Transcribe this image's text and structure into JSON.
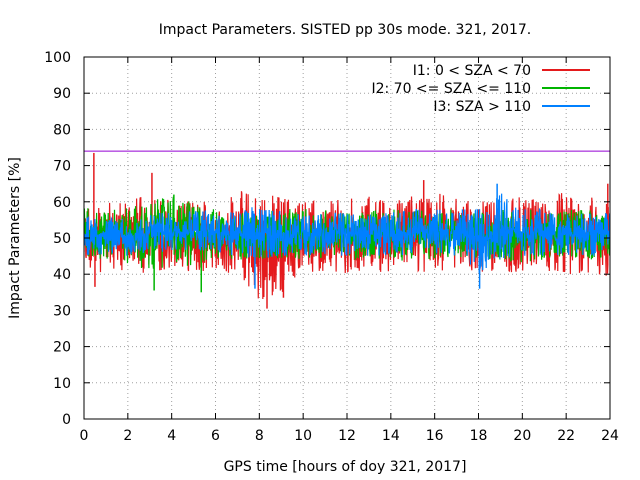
{
  "chart_data": {
    "type": "line",
    "title": "Impact Parameters. SISTED pp 30s mode. 321, 2017.",
    "xlabel": "GPS time [hours of doy 321, 2017]",
    "ylabel": "Impact Parameters [%]",
    "xlim": [
      0,
      24
    ],
    "ylim": [
      0,
      100
    ],
    "x_ticks": [
      0,
      2,
      4,
      6,
      8,
      10,
      12,
      14,
      16,
      18,
      20,
      22,
      24
    ],
    "y_ticks": [
      0,
      10,
      20,
      30,
      40,
      50,
      60,
      70,
      80,
      90,
      100
    ],
    "grid": true,
    "legend_position": "top-right",
    "reference_line": {
      "y": 74,
      "color": "#9400d3"
    },
    "series": [
      {
        "name": "I1: 0 < SZA < 70",
        "color": "#e41a1c",
        "x": [
          0,
          1,
          2,
          3,
          4,
          5,
          6,
          7,
          8,
          9,
          10,
          11,
          12,
          13,
          14,
          15,
          16,
          17,
          18,
          19,
          20,
          21,
          22,
          23,
          24
        ],
        "low": [
          42,
          40,
          41,
          40,
          41,
          40,
          40,
          40,
          31,
          34,
          40,
          41,
          40,
          40,
          40,
          41,
          40,
          41,
          40,
          41,
          40,
          41,
          40,
          40,
          39
        ],
        "high": [
          59,
          60,
          61,
          62,
          61,
          60,
          61,
          63,
          63,
          62,
          61,
          60,
          61,
          62,
          60,
          62,
          63,
          61,
          61,
          60,
          62,
          60,
          64,
          62,
          63
        ],
        "spikes": [
          {
            "x": 0.45,
            "y": 73.5
          },
          {
            "x": 0.5,
            "y": 36.5
          },
          {
            "x": 3.1,
            "y": 68
          },
          {
            "x": 8.35,
            "y": 30.5
          },
          {
            "x": 9.1,
            "y": 33.5
          },
          {
            "x": 15.5,
            "y": 66
          },
          {
            "x": 23.9,
            "y": 65
          }
        ]
      },
      {
        "name": "I2: 70 <= SZA <= 110",
        "color": "#00b400",
        "x": [
          0,
          1,
          2,
          3,
          4,
          5,
          6,
          7,
          8,
          9,
          10,
          11,
          12,
          13,
          14,
          15,
          16,
          17,
          18,
          19,
          20,
          21,
          22,
          23,
          24
        ],
        "low": [
          44,
          44,
          43,
          40,
          43,
          42,
          44,
          44,
          44,
          44,
          44,
          44,
          44,
          44,
          43,
          44,
          44,
          44,
          44,
          44,
          43,
          44,
          44,
          44,
          44
        ],
        "high": [
          59,
          58,
          59,
          60,
          62,
          60,
          58,
          57,
          57,
          58,
          58,
          58,
          57,
          58,
          58,
          58,
          58,
          58,
          57,
          58,
          58,
          58,
          58,
          58,
          58
        ],
        "spikes": [
          {
            "x": 3.2,
            "y": 35.5
          },
          {
            "x": 5.35,
            "y": 35
          },
          {
            "x": 4.1,
            "y": 62
          }
        ]
      },
      {
        "name": "I3: SZA > 110",
        "color": "#0080ff",
        "x": [
          0,
          1,
          2,
          3,
          4,
          5,
          6,
          7,
          8,
          9,
          10,
          11,
          12,
          13,
          14,
          15,
          16,
          17,
          18,
          19,
          20,
          21,
          22,
          23,
          24
        ],
        "low": [
          45,
          45,
          45,
          46,
          46,
          46,
          46,
          45,
          44,
          45,
          45,
          45,
          45,
          45,
          45,
          45,
          45,
          45,
          40,
          44,
          45,
          45,
          45,
          45,
          45
        ],
        "high": [
          56,
          56,
          56,
          57,
          57,
          58,
          58,
          59,
          59,
          58,
          57,
          57,
          57,
          57,
          57,
          58,
          58,
          58,
          58,
          63,
          58,
          58,
          57,
          57,
          57
        ],
        "spikes": [
          {
            "x": 7.8,
            "y": 36
          },
          {
            "x": 18.05,
            "y": 36
          },
          {
            "x": 18.85,
            "y": 65
          }
        ]
      }
    ]
  }
}
